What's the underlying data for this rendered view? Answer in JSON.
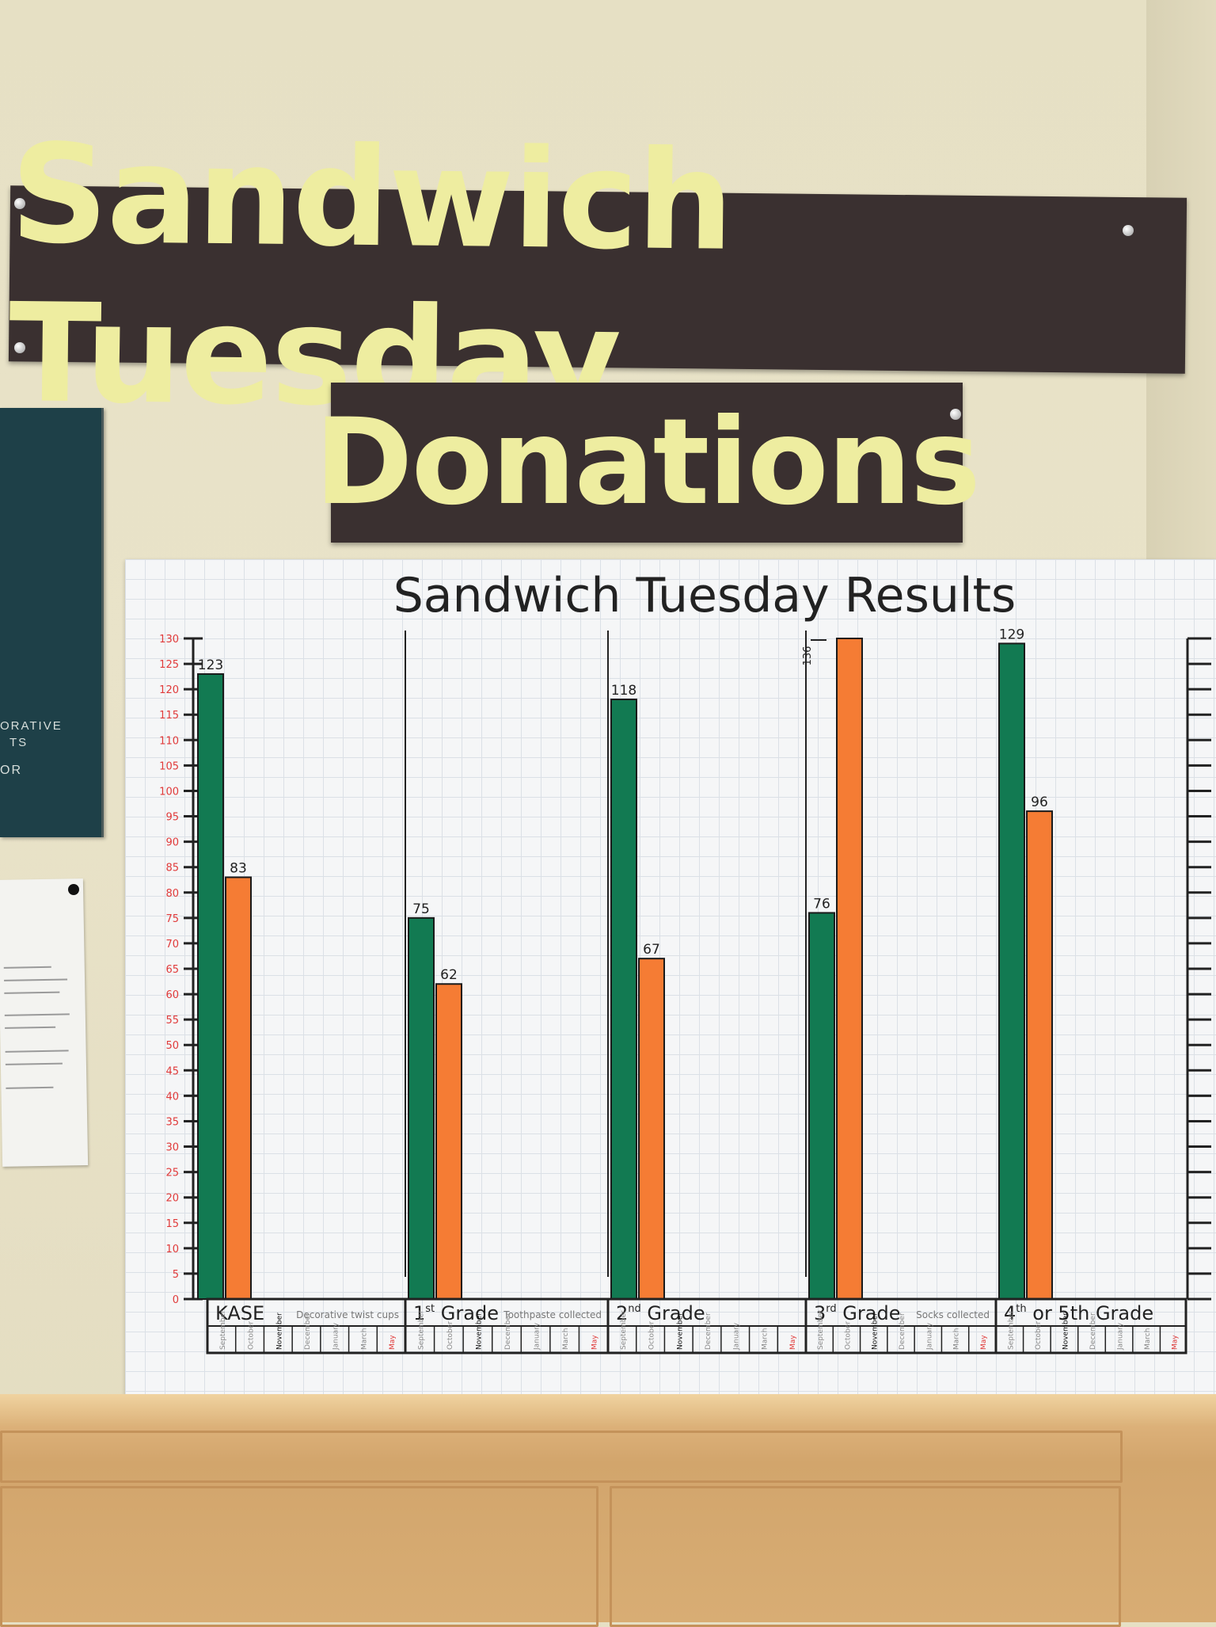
{
  "banner_top": "Sandwich Tuesday",
  "banner_bottom": "Donations",
  "plaque": {
    "line1": "ORATIVE",
    "line2": "TS",
    "line3": "OR"
  },
  "colors": {
    "green": "#127a52",
    "orange": "#f57c34",
    "axis_red": "#e03a3a",
    "banner_bg": "#3a3030",
    "banner_text": "#eeeda0"
  },
  "chart_data": {
    "type": "bar",
    "title": "Sandwich Tuesday Results",
    "ylim": [
      0,
      130
    ],
    "y_tick_step": 5,
    "categories": [
      {
        "pre": "",
        "sup": "",
        "name": "KASE",
        "note": "Decorative twist cups"
      },
      {
        "pre": "1",
        "sup": "st",
        "name": "Grade",
        "note": "Toothpaste collected"
      },
      {
        "pre": "2",
        "sup": "nd",
        "name": "Grade",
        "note": ""
      },
      {
        "pre": "3",
        "sup": "rd",
        "name": "Grade",
        "note": "Socks collected"
      },
      {
        "pre": "4",
        "sup": "th",
        "name": "or 5th Grade",
        "note": ""
      }
    ],
    "series": [
      {
        "color": "#127a52",
        "values": [
          123,
          75,
          118,
          76,
          129
        ],
        "labels": [
          "123",
          "75",
          "118",
          "76",
          "129"
        ]
      },
      {
        "color": "#f57c34",
        "values": [
          83,
          62,
          67,
          130,
          96
        ],
        "labels": [
          "83",
          "62",
          "67",
          "",
          "96"
        ]
      }
    ],
    "extra_annotation": "136",
    "months": [
      "September",
      "October",
      "November",
      "December",
      "January",
      "March",
      "May"
    ]
  }
}
